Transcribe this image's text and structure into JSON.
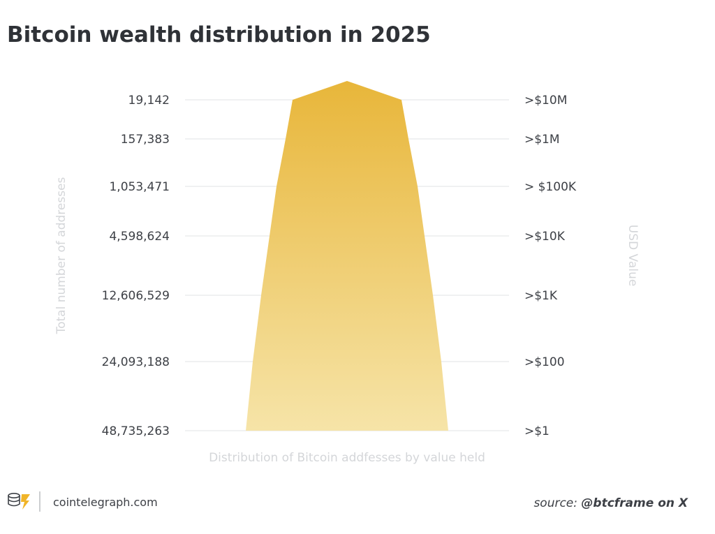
{
  "chart_data": {
    "type": "area",
    "title": "Bitcoin wealth distribution in 2025",
    "xlabel": "Distribution of Bitcoin addfesses by value held",
    "ylabel": "Total number of addresses",
    "ylabel_right": "USD Value",
    "grid": true,
    "levels": [
      {
        "addresses": "19,142",
        "usd_value": ">$10M"
      },
      {
        "addresses": "157,383",
        "usd_value": ">$1M"
      },
      {
        "addresses": "1,053,471",
        "usd_value": "> $100K"
      },
      {
        "addresses": "4,598,624",
        "usd_value": ">$10K"
      },
      {
        "addresses": "12,606,529",
        "usd_value": ">$1K"
      },
      {
        "addresses": "24,093,188",
        "usd_value": ">$100"
      },
      {
        "addresses": "48,735,263",
        "usd_value": ">$1"
      }
    ],
    "colors": {
      "top": "#e8b63a",
      "bottom": "#f6e4a8",
      "gridline": "#e1e3e6",
      "axis_label": "#d4d6d9"
    }
  },
  "footer": {
    "site": "cointelegraph.com",
    "source_prefix": "source: ",
    "source_handle": "@btcframe on X",
    "logo_icon": "cointelegraph-logo-icon"
  }
}
